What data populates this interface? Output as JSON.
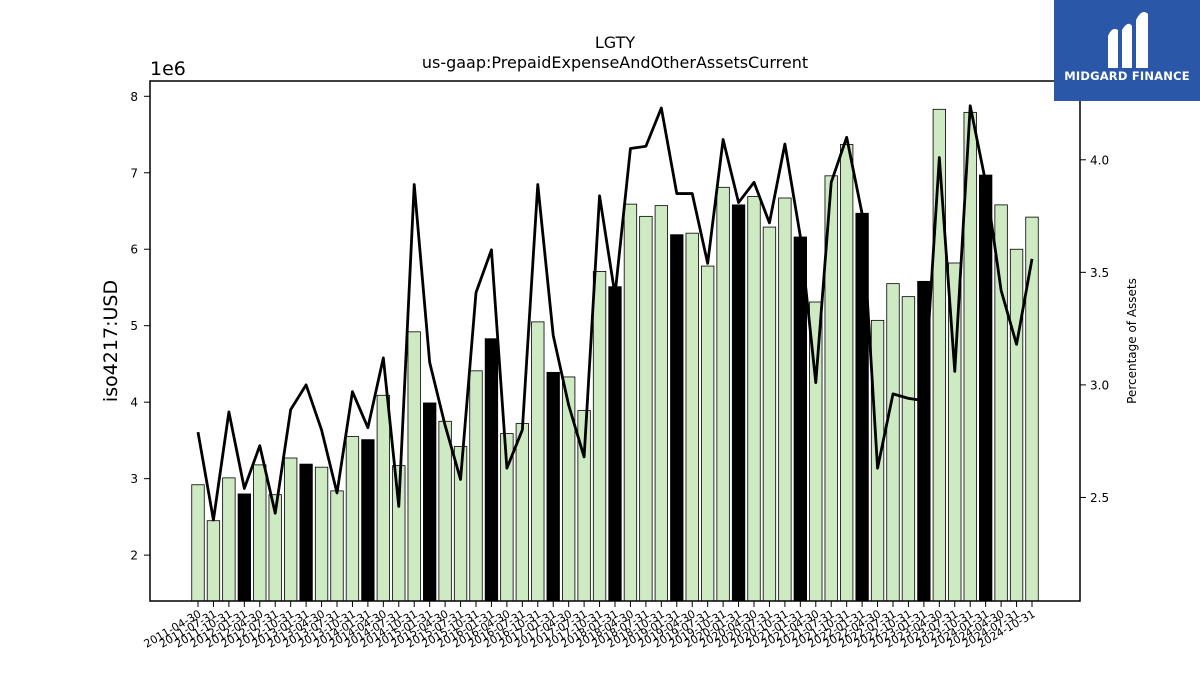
{
  "brand": {
    "name": "MIDGARD FINANCE"
  },
  "chart_data": {
    "type": "bar",
    "title": "LGTY",
    "subtitle": "us-gaap:PrepaidExpenseAndOtherAssetsCurrent",
    "ylabel": "iso4217:USD",
    "y_offset_label": "1e6",
    "y2label": "Percentage of Assets",
    "ylim": [
      1400000,
      8200000
    ],
    "y2lim": [
      2.04,
      4.35
    ],
    "yticks": [
      "2",
      "3",
      "4",
      "5",
      "6",
      "7",
      "8"
    ],
    "y2ticks": [
      "2.5",
      "3.0",
      "3.5",
      "4.0"
    ],
    "categories": [
      "2011-04-30",
      "2011-07-31",
      "2011-10-31",
      "2012-01-31",
      "2012-04-30",
      "2012-07-31",
      "2012-10-31",
      "2013-01-31",
      "2013-04-30",
      "2013-07-31",
      "2013-10-31",
      "2014-01-31",
      "2014-04-30",
      "2014-07-31",
      "2014-10-31",
      "2015-01-31",
      "2015-04-30",
      "2015-07-31",
      "2015-10-31",
      "2016-01-31",
      "2016-04-30",
      "2016-07-31",
      "2016-10-31",
      "2017-01-31",
      "2017-04-30",
      "2017-07-31",
      "2017-10-31",
      "2018-01-31",
      "2018-04-30",
      "2018-07-31",
      "2018-10-31",
      "2019-01-31",
      "2019-04-30",
      "2019-07-31",
      "2019-10-31",
      "2020-01-31",
      "2020-04-30",
      "2020-07-31",
      "2020-10-31",
      "2021-01-31",
      "2021-04-30",
      "2021-07-31",
      "2021-10-31",
      "2022-01-31",
      "2022-04-30",
      "2022-07-31",
      "2022-10-31",
      "2023-01-31",
      "2023-04-30",
      "2023-07-31",
      "2023-10-31",
      "2024-01-31",
      "2024-04-30",
      "2024-07-31",
      "2024-10-31"
    ],
    "series": [
      {
        "values": [
          2920000,
          2450000,
          3010000,
          2800000,
          3180000,
          2790000,
          3270000,
          3190000,
          3150000,
          2840000,
          3550000,
          3510000,
          4090000,
          3170000,
          4920000,
          3990000,
          3750000,
          3420000,
          4410000,
          4830000,
          3590000,
          3720000,
          5050000,
          4390000,
          4330000,
          3890000,
          5710000,
          5510000,
          6590000,
          6430000,
          6570000,
          6190000,
          6210000,
          5780000,
          6810000,
          6580000,
          6690000,
          6290000,
          6670000,
          6160000,
          5310000,
          6960000,
          7370000,
          6470000,
          5070000,
          5550000,
          5380000,
          5580000,
          7830000,
          5820000,
          7790000,
          6970000,
          6580000,
          6000000,
          6420000
        ],
        "highlight": [
          false,
          false,
          false,
          true,
          false,
          false,
          false,
          true,
          false,
          false,
          false,
          true,
          false,
          false,
          false,
          true,
          false,
          false,
          false,
          true,
          false,
          false,
          false,
          true,
          false,
          false,
          false,
          true,
          false,
          false,
          false,
          true,
          false,
          false,
          false,
          true,
          false,
          false,
          false,
          true,
          false,
          false,
          false,
          true,
          false,
          false,
          false,
          true,
          false,
          false,
          false,
          true,
          false,
          false,
          false
        ],
        "color": "#cdeac3",
        "highlight_color": "#000000"
      },
      {
        "type": "line",
        "axis": "right",
        "values": [
          2.79,
          2.4,
          2.88,
          2.54,
          2.73,
          2.43,
          2.89,
          3.0,
          2.8,
          2.52,
          2.97,
          2.81,
          3.12,
          2.46,
          3.89,
          3.1,
          2.82,
          2.58,
          3.41,
          3.6,
          2.63,
          2.8,
          3.89,
          3.22,
          2.91,
          2.68,
          3.84,
          3.4,
          4.05,
          4.06,
          4.23,
          3.85,
          3.85,
          3.54,
          4.09,
          3.81,
          3.9,
          3.72,
          4.07,
          3.66,
          3.01,
          3.9,
          4.1,
          3.76,
          2.63,
          2.96,
          2.94,
          2.93,
          4.01,
          3.06,
          4.24,
          3.9,
          3.42,
          3.18,
          3.56
        ],
        "color": "#000000"
      }
    ]
  }
}
